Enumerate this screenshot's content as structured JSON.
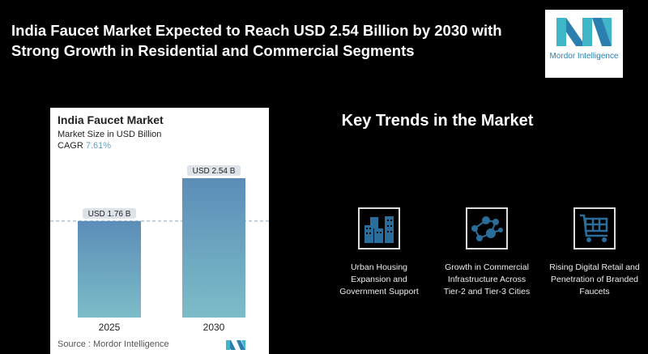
{
  "header": {
    "title": "India Faucet Market Expected to Reach USD 2.54 Billion by 2030 with Strong Growth in Residential and Commercial Segments"
  },
  "logo": {
    "text": "Mordor Intelligence"
  },
  "chart_data": {
    "type": "bar",
    "title": "India Faucet Market",
    "subtitle": "Market Size in USD Billion",
    "cagr_label": "CAGR",
    "cagr_value": "7.61%",
    "categories": [
      "2025",
      "2030"
    ],
    "values": [
      1.76,
      2.54
    ],
    "data_labels": [
      "USD 1.76 B",
      "USD 2.54 B"
    ],
    "ylim": [
      0,
      2.54
    ],
    "source": "Source :  Mordor Intelligence",
    "colors": {
      "bar_top": "#5b8db8",
      "bar_bottom": "#7dbcc8",
      "cagr": "#6aa0c0"
    }
  },
  "trends": {
    "heading": "Key Trends in the Market",
    "items": [
      {
        "icon": "buildings-icon",
        "lines": [
          "Urban Housing",
          "Expansion and",
          "Government Support"
        ]
      },
      {
        "icon": "network-icon",
        "lines": [
          "Growth in Commercial",
          "Infrastructure Across",
          "Tier-2 and Tier-3 Cities"
        ]
      },
      {
        "icon": "shopping-cart-icon",
        "lines": [
          "Rising Digital Retail and",
          "Penetration of Branded",
          "Faucets"
        ]
      }
    ]
  }
}
